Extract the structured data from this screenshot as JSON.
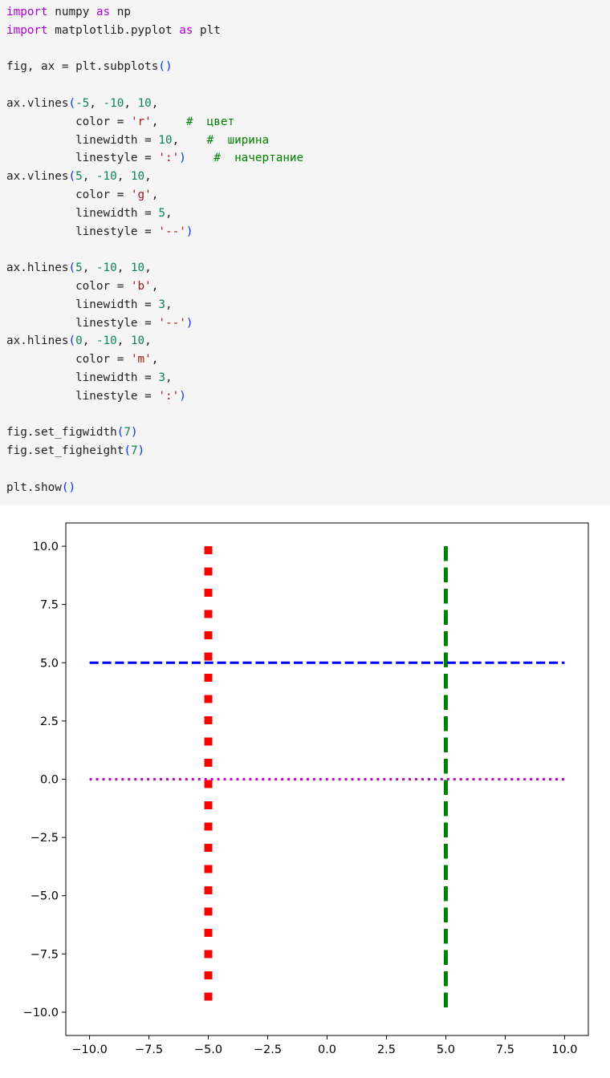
{
  "code": {
    "lines": [
      [
        {
          "t": "import",
          "c": "kw"
        },
        {
          "t": " numpy "
        },
        {
          "t": "as",
          "c": "kw"
        },
        {
          "t": " np"
        }
      ],
      [
        {
          "t": "import",
          "c": "kw"
        },
        {
          "t": " matplotlib.pyplot "
        },
        {
          "t": "as",
          "c": "kw"
        },
        {
          "t": " plt"
        }
      ],
      [],
      [
        {
          "t": "fig, ax = plt.subplots"
        },
        {
          "t": "()",
          "c": "par"
        }
      ],
      [],
      [
        {
          "t": "ax.vlines"
        },
        {
          "t": "(",
          "c": "par"
        },
        {
          "t": "-5",
          "c": "num"
        },
        {
          "t": ", "
        },
        {
          "t": "-10",
          "c": "num"
        },
        {
          "t": ", "
        },
        {
          "t": "10",
          "c": "num"
        },
        {
          "t": ","
        }
      ],
      [
        {
          "t": "          color = "
        },
        {
          "t": "'r'",
          "c": "str"
        },
        {
          "t": ",    "
        },
        {
          "t": "#  цвет",
          "c": "cmt"
        }
      ],
      [
        {
          "t": "          linewidth = "
        },
        {
          "t": "10",
          "c": "num"
        },
        {
          "t": ",    "
        },
        {
          "t": "#  ширина",
          "c": "cmt"
        }
      ],
      [
        {
          "t": "          linestyle = "
        },
        {
          "t": "':'",
          "c": "str"
        },
        {
          "t": ")",
          "c": "par"
        },
        {
          "t": "    "
        },
        {
          "t": "#  начертание",
          "c": "cmt"
        }
      ],
      [
        {
          "t": "ax.vlines"
        },
        {
          "t": "(",
          "c": "par"
        },
        {
          "t": "5",
          "c": "num"
        },
        {
          "t": ", "
        },
        {
          "t": "-10",
          "c": "num"
        },
        {
          "t": ", "
        },
        {
          "t": "10",
          "c": "num"
        },
        {
          "t": ","
        }
      ],
      [
        {
          "t": "          color = "
        },
        {
          "t": "'g'",
          "c": "str"
        },
        {
          "t": ","
        }
      ],
      [
        {
          "t": "          linewidth = "
        },
        {
          "t": "5",
          "c": "num"
        },
        {
          "t": ","
        }
      ],
      [
        {
          "t": "          linestyle = "
        },
        {
          "t": "'--'",
          "c": "str"
        },
        {
          "t": ")",
          "c": "par"
        }
      ],
      [],
      [
        {
          "t": "ax.hlines"
        },
        {
          "t": "(",
          "c": "par"
        },
        {
          "t": "5",
          "c": "num"
        },
        {
          "t": ", "
        },
        {
          "t": "-10",
          "c": "num"
        },
        {
          "t": ", "
        },
        {
          "t": "10",
          "c": "num"
        },
        {
          "t": ","
        }
      ],
      [
        {
          "t": "          color = "
        },
        {
          "t": "'b'",
          "c": "str"
        },
        {
          "t": ","
        }
      ],
      [
        {
          "t": "          linewidth = "
        },
        {
          "t": "3",
          "c": "num"
        },
        {
          "t": ","
        }
      ],
      [
        {
          "t": "          linestyle = "
        },
        {
          "t": "'--'",
          "c": "str"
        },
        {
          "t": ")",
          "c": "par"
        }
      ],
      [
        {
          "t": "ax.hlines"
        },
        {
          "t": "(",
          "c": "par"
        },
        {
          "t": "0",
          "c": "num"
        },
        {
          "t": ", "
        },
        {
          "t": "-10",
          "c": "num"
        },
        {
          "t": ", "
        },
        {
          "t": "10",
          "c": "num"
        },
        {
          "t": ","
        }
      ],
      [
        {
          "t": "          color = "
        },
        {
          "t": "'m'",
          "c": "str"
        },
        {
          "t": ","
        }
      ],
      [
        {
          "t": "          linewidth = "
        },
        {
          "t": "3",
          "c": "num"
        },
        {
          "t": ","
        }
      ],
      [
        {
          "t": "          linestyle = "
        },
        {
          "t": "':'",
          "c": "str"
        },
        {
          "t": ")",
          "c": "par"
        }
      ],
      [],
      [
        {
          "t": "fig.set_figwidth"
        },
        {
          "t": "(",
          "c": "par"
        },
        {
          "t": "7",
          "c": "num"
        },
        {
          "t": ")",
          "c": "par"
        }
      ],
      [
        {
          "t": "fig.set_figheight"
        },
        {
          "t": "(",
          "c": "par"
        },
        {
          "t": "7",
          "c": "num"
        },
        {
          "t": ")",
          "c": "par"
        }
      ],
      [],
      [
        {
          "t": "plt.show"
        },
        {
          "t": "()",
          "c": "par"
        }
      ]
    ]
  },
  "chart_data": {
    "type": "line",
    "title": "",
    "xlabel": "",
    "ylabel": "",
    "xlim": [
      -11,
      11
    ],
    "ylim": [
      -11,
      11
    ],
    "grid": false,
    "x_ticks": [
      -10.0,
      -7.5,
      -5.0,
      -2.5,
      0.0,
      2.5,
      5.0,
      7.5,
      10.0
    ],
    "x_tick_labels": [
      "−10.0",
      "−7.5",
      "−5.0",
      "−2.5",
      "0.0",
      "2.5",
      "5.0",
      "7.5",
      "10.0"
    ],
    "y_ticks": [
      10.0,
      7.5,
      5.0,
      2.5,
      0.0,
      -2.5,
      -5.0,
      -7.5,
      -10.0
    ],
    "y_tick_labels": [
      "10.0",
      "7.5",
      "5.0",
      "2.5",
      "0.0",
      "−2.5",
      "−5.0",
      "−7.5",
      "−10.0"
    ],
    "series": [
      {
        "kind": "vline",
        "x": -5,
        "ymin": -10,
        "ymax": 10,
        "color": "#ff0000",
        "linewidth": 10,
        "linestyle": "dotted"
      },
      {
        "kind": "vline",
        "x": 5,
        "ymin": -10,
        "ymax": 10,
        "color": "#008000",
        "linewidth": 5,
        "linestyle": "dashed"
      },
      {
        "kind": "hline",
        "y": 5,
        "xmin": -10,
        "xmax": 10,
        "color": "#0000ff",
        "linewidth": 3,
        "linestyle": "dashed"
      },
      {
        "kind": "hline",
        "y": 0,
        "xmin": -10,
        "xmax": 10,
        "color": "#bf00bf",
        "linewidth": 3,
        "linestyle": "dotted"
      }
    ]
  }
}
